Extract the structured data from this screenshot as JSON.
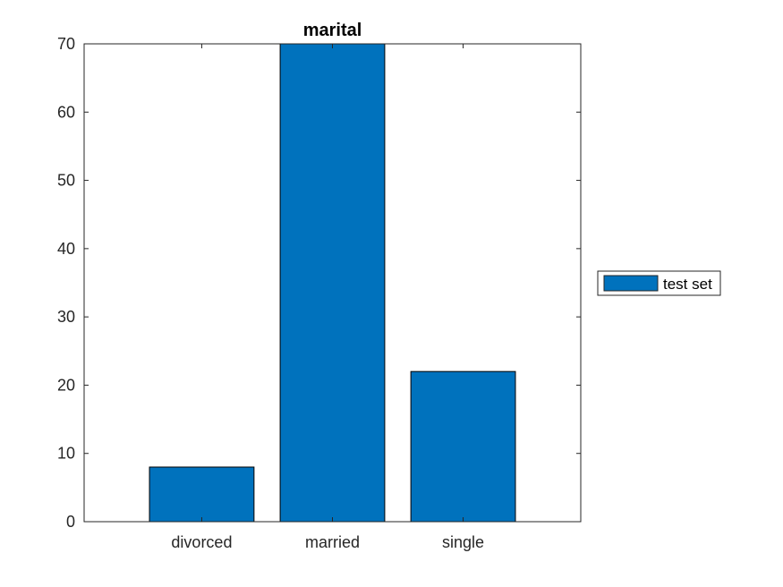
{
  "chart_data": {
    "type": "bar",
    "title": "marital",
    "categories": [
      "divorced",
      "married",
      "single"
    ],
    "series": [
      {
        "name": "test set",
        "values": [
          8,
          70,
          22
        ]
      }
    ],
    "ylim": [
      0,
      70
    ],
    "yticks": [
      0,
      10,
      20,
      30,
      40,
      50,
      60,
      70
    ],
    "xlabel": "",
    "ylabel": "",
    "grid": false,
    "legend": "outside-right",
    "bar_color": "#0072BD"
  }
}
